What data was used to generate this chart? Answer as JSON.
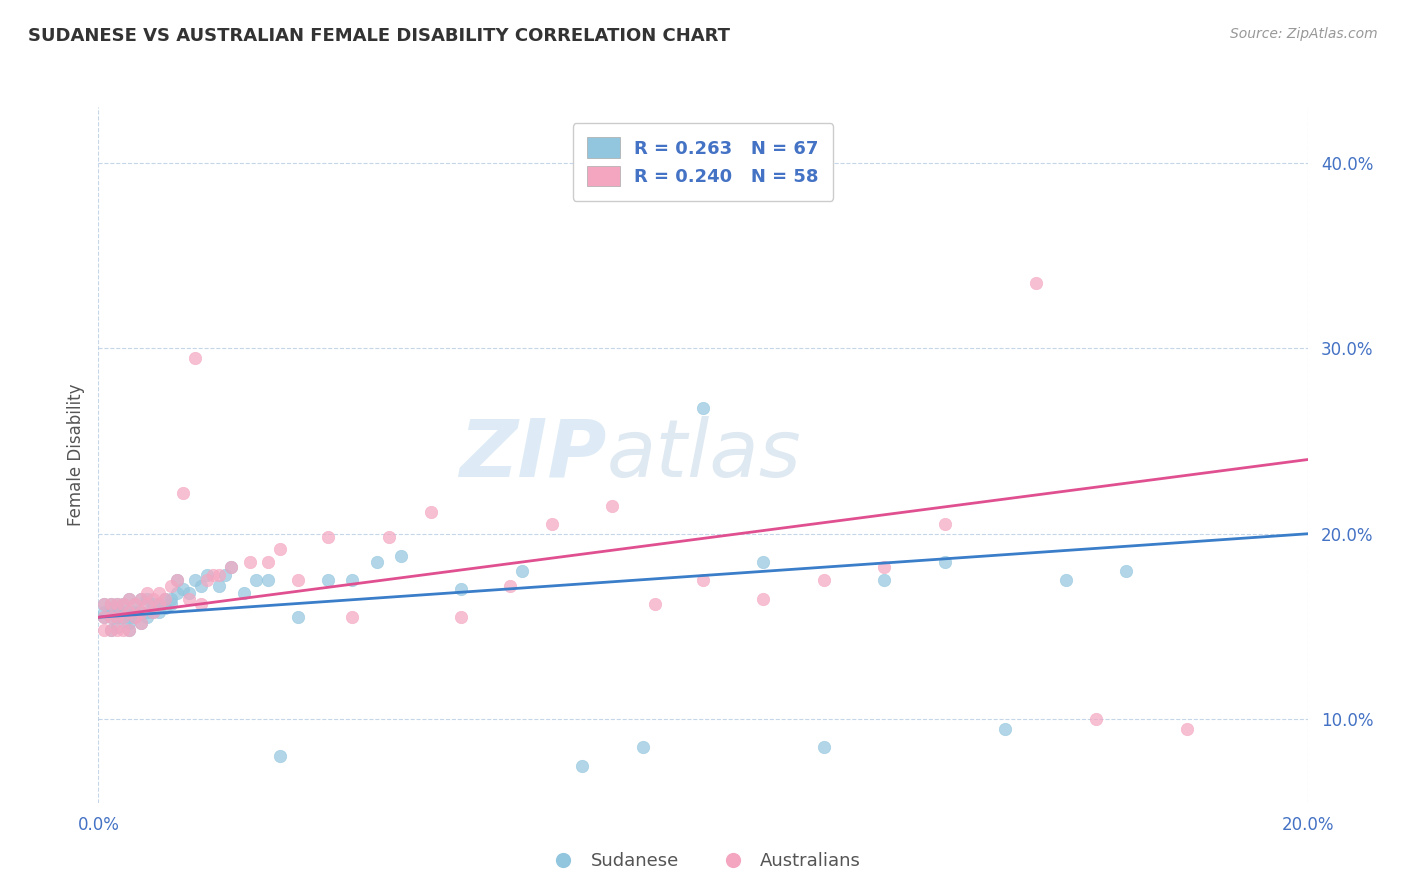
{
  "title": "SUDANESE VS AUSTRALIAN FEMALE DISABILITY CORRELATION CHART",
  "source": "Source: ZipAtlas.com",
  "ylabel": "Female Disability",
  "xlim": [
    0.0,
    0.2
  ],
  "ylim": [
    0.055,
    0.43
  ],
  "yticks": [
    0.1,
    0.2,
    0.3,
    0.4
  ],
  "xtick_labels": [
    "0.0%",
    "20.0%"
  ],
  "ytick_labels": [
    "10.0%",
    "20.0%",
    "30.0%",
    "40.0%"
  ],
  "legend_r1": "R = 0.263",
  "legend_n1": "N = 67",
  "legend_r2": "R = 0.240",
  "legend_n2": "N = 58",
  "blue_color": "#92c5de",
  "pink_color": "#f4a6c0",
  "line_blue": "#3a7dc9",
  "line_pink": "#e05090",
  "watermark_color": "#c8dff0",
  "sudanese_x": [
    0.001,
    0.001,
    0.001,
    0.002,
    0.002,
    0.002,
    0.002,
    0.003,
    0.003,
    0.003,
    0.003,
    0.004,
    0.004,
    0.004,
    0.005,
    0.005,
    0.005,
    0.005,
    0.005,
    0.006,
    0.006,
    0.006,
    0.007,
    0.007,
    0.007,
    0.008,
    0.008,
    0.008,
    0.009,
    0.009,
    0.01,
    0.01,
    0.011,
    0.011,
    0.012,
    0.012,
    0.013,
    0.013,
    0.014,
    0.015,
    0.016,
    0.017,
    0.018,
    0.02,
    0.021,
    0.022,
    0.024,
    0.026,
    0.028,
    0.03,
    0.033,
    0.038,
    0.042,
    0.046,
    0.05,
    0.06,
    0.07,
    0.08,
    0.09,
    0.1,
    0.11,
    0.12,
    0.13,
    0.14,
    0.15,
    0.16,
    0.17
  ],
  "sudanese_y": [
    0.155,
    0.158,
    0.162,
    0.148,
    0.155,
    0.16,
    0.162,
    0.15,
    0.155,
    0.158,
    0.162,
    0.155,
    0.158,
    0.162,
    0.148,
    0.152,
    0.155,
    0.158,
    0.165,
    0.155,
    0.158,
    0.162,
    0.152,
    0.158,
    0.165,
    0.155,
    0.158,
    0.165,
    0.158,
    0.162,
    0.158,
    0.162,
    0.16,
    0.165,
    0.162,
    0.165,
    0.168,
    0.175,
    0.17,
    0.168,
    0.175,
    0.172,
    0.178,
    0.172,
    0.178,
    0.182,
    0.168,
    0.175,
    0.175,
    0.08,
    0.155,
    0.175,
    0.175,
    0.185,
    0.188,
    0.17,
    0.18,
    0.075,
    0.085,
    0.268,
    0.185,
    0.085,
    0.175,
    0.185,
    0.095,
    0.175,
    0.18
  ],
  "australian_x": [
    0.001,
    0.001,
    0.001,
    0.002,
    0.002,
    0.002,
    0.003,
    0.003,
    0.003,
    0.004,
    0.004,
    0.004,
    0.005,
    0.005,
    0.005,
    0.006,
    0.006,
    0.007,
    0.007,
    0.007,
    0.008,
    0.008,
    0.009,
    0.009,
    0.01,
    0.01,
    0.011,
    0.012,
    0.013,
    0.014,
    0.015,
    0.016,
    0.017,
    0.018,
    0.019,
    0.02,
    0.022,
    0.025,
    0.028,
    0.03,
    0.033,
    0.038,
    0.042,
    0.048,
    0.055,
    0.06,
    0.068,
    0.075,
    0.085,
    0.092,
    0.1,
    0.11,
    0.12,
    0.13,
    0.14,
    0.155,
    0.165,
    0.18
  ],
  "australian_y": [
    0.148,
    0.155,
    0.162,
    0.148,
    0.155,
    0.162,
    0.148,
    0.155,
    0.162,
    0.148,
    0.155,
    0.162,
    0.148,
    0.158,
    0.165,
    0.155,
    0.162,
    0.152,
    0.158,
    0.165,
    0.162,
    0.168,
    0.158,
    0.165,
    0.162,
    0.168,
    0.165,
    0.172,
    0.175,
    0.222,
    0.165,
    0.295,
    0.162,
    0.175,
    0.178,
    0.178,
    0.182,
    0.185,
    0.185,
    0.192,
    0.175,
    0.198,
    0.155,
    0.198,
    0.212,
    0.155,
    0.172,
    0.205,
    0.215,
    0.162,
    0.175,
    0.165,
    0.175,
    0.182,
    0.205,
    0.335,
    0.1,
    0.095
  ]
}
